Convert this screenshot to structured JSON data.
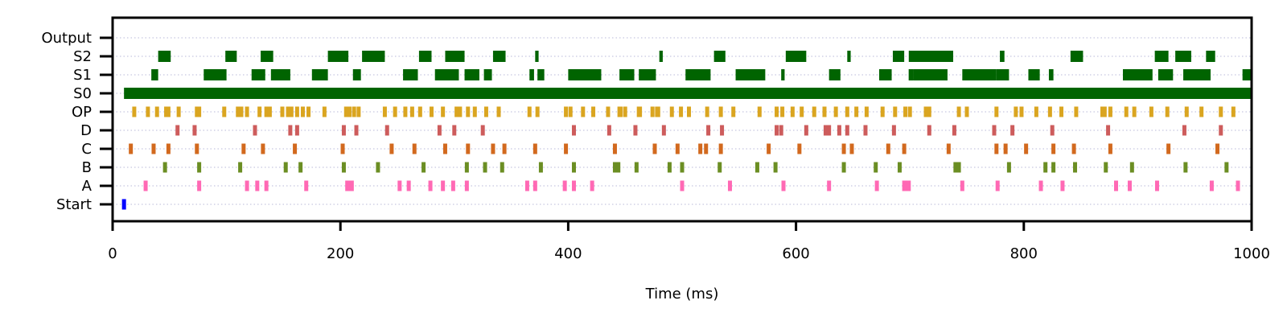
{
  "chart_data": {
    "type": "raster",
    "title": "",
    "xlabel": "Time (ms)",
    "ylabel": "",
    "xlim": [
      0,
      1000
    ],
    "x_ticks": [
      0,
      200,
      400,
      600,
      800,
      1000
    ],
    "grid": "horizontal dotted lines per row",
    "rows": [
      "Start",
      "A",
      "B",
      "C",
      "D",
      "OP",
      "S0",
      "S1",
      "S2",
      "Output"
    ],
    "colors": {
      "Start": "#0000ff",
      "A": "#ff69b4",
      "B": "#6b8e23",
      "C": "#d2691e",
      "D": "#cd5c5c",
      "OP": "#daa520",
      "S0": "#006400",
      "S1": "#006400",
      "S2": "#006400",
      "Output": "#006400"
    },
    "series": [
      {
        "row": "Start",
        "events": [
          10
        ]
      },
      {
        "row": "A",
        "events": [
          29,
          76,
          118,
          127,
          135,
          170,
          206,
          208,
          210,
          252,
          260,
          279,
          290,
          299,
          311,
          364,
          371,
          397,
          405,
          421,
          500,
          542,
          589,
          629,
          671,
          695,
          697,
          699,
          746,
          777,
          815,
          834,
          881,
          893,
          917,
          965,
          988
        ]
      },
      {
        "row": "B",
        "events": [
          46,
          76,
          112,
          152,
          165,
          203,
          233,
          273,
          311,
          327,
          342,
          376,
          405,
          441,
          444,
          460,
          489,
          500,
          533,
          566,
          582,
          642,
          670,
          691,
          740,
          743,
          787,
          819,
          826,
          845,
          872,
          895,
          942,
          978
        ]
      },
      {
        "row": "C",
        "events": [
          16,
          36,
          49,
          74,
          115,
          132,
          160,
          202,
          245,
          265,
          292,
          312,
          334,
          344,
          371,
          398,
          441,
          476,
          496,
          516,
          521,
          534,
          576,
          603,
          642,
          649,
          681,
          695,
          734,
          776,
          784,
          802,
          826,
          844,
          876,
          927,
          970
        ]
      },
      {
        "row": "D",
        "events": [
          57,
          72,
          125,
          156,
          162,
          203,
          214,
          241,
          287,
          300,
          325,
          405,
          436,
          459,
          484,
          523,
          535,
          583,
          587,
          609,
          626,
          629,
          638,
          645,
          661,
          686,
          717,
          739,
          774,
          790,
          825,
          874,
          941,
          973
        ]
      },
      {
        "row": "OP",
        "events": [
          19,
          31,
          39,
          47,
          49,
          58,
          74,
          76,
          98,
          110,
          113,
          118,
          129,
          135,
          138,
          149,
          154,
          157,
          162,
          167,
          172,
          186,
          205,
          208,
          212,
          216,
          239,
          248,
          257,
          263,
          270,
          280,
          290,
          302,
          305,
          312,
          318,
          328,
          339,
          366,
          373,
          398,
          402,
          413,
          422,
          435,
          445,
          446,
          450,
          462,
          463,
          474,
          478,
          479,
          491,
          499,
          506,
          522,
          534,
          545,
          568,
          583,
          588,
          597,
          605,
          616,
          625,
          635,
          645,
          653,
          662,
          676,
          687,
          696,
          700,
          714,
          717,
          743,
          750,
          776,
          793,
          798,
          811,
          823,
          833,
          846,
          869,
          871,
          876,
          890,
          897,
          912,
          926,
          943,
          956,
          973,
          984
        ]
      },
      {
        "row": "S0",
        "spans": [
          [
            10,
            1000
          ]
        ]
      },
      {
        "row": "S1",
        "spans": [
          [
            34,
            40
          ],
          [
            80,
            100
          ],
          [
            122,
            134
          ],
          [
            139,
            156
          ],
          [
            175,
            189
          ],
          [
            211,
            218
          ],
          [
            255,
            268
          ],
          [
            283,
            304
          ],
          [
            309,
            322
          ],
          [
            326,
            333
          ],
          [
            366,
            370
          ],
          [
            373,
            379
          ],
          [
            400,
            429
          ],
          [
            445,
            458
          ],
          [
            462,
            477
          ],
          [
            503,
            525
          ],
          [
            547,
            573
          ],
          [
            587,
            590
          ],
          [
            629,
            639
          ],
          [
            673,
            684
          ],
          [
            699,
            702
          ],
          [
            703,
            699
          ],
          [
            703,
            733
          ],
          [
            746,
            776
          ],
          [
            776,
            787
          ],
          [
            804,
            814
          ],
          [
            822,
            826
          ],
          [
            887,
            913
          ],
          [
            918,
            931
          ],
          [
            940,
            964
          ],
          [
            992,
            1000
          ]
        ]
      },
      {
        "row": "S2",
        "spans": [
          [
            40,
            51
          ],
          [
            99,
            109
          ],
          [
            130,
            141
          ],
          [
            189,
            207
          ],
          [
            219,
            239
          ],
          [
            269,
            280
          ],
          [
            292,
            309
          ],
          [
            334,
            345
          ],
          [
            371,
            374
          ],
          [
            480,
            483
          ],
          [
            528,
            538
          ],
          [
            591,
            609
          ],
          [
            645,
            648
          ],
          [
            685,
            695
          ],
          [
            699,
            738
          ],
          [
            779,
            783
          ],
          [
            841,
            852
          ],
          [
            915,
            927
          ],
          [
            933,
            947
          ],
          [
            960,
            968
          ]
        ]
      },
      {
        "row": "Output",
        "spans": []
      }
    ]
  }
}
